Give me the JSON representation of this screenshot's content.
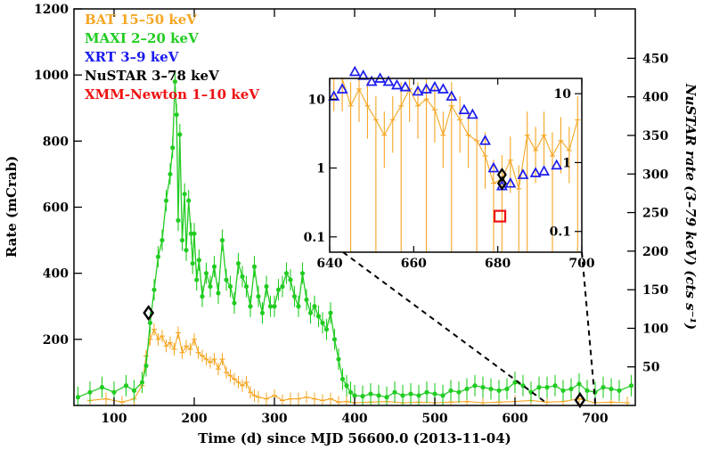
{
  "chart_data": [
    {
      "type": "scatter",
      "xlabel": "Time (d) since MJD 56600.0 (2013-11-04)",
      "ylabel": "Rate (mCrab)",
      "y2label": "NuSTAR rate (3–79 keV) (cts s⁻¹)",
      "xlim": [
        50,
        750
      ],
      "ylim": [
        0,
        1200
      ],
      "y2lim": [
        0,
        514
      ],
      "x_ticks": [
        "100",
        "200",
        "300",
        "400",
        "500",
        "600",
        "700"
      ],
      "y_ticks": [
        "200",
        "400",
        "600",
        "800",
        "1000",
        "1200"
      ],
      "y2_ticks": [
        "50",
        "100",
        "150",
        "200",
        "250",
        "300",
        "350",
        "400",
        "450"
      ],
      "legend_position": "top-left",
      "legend": [
        {
          "label": "BAT 15–50 keV",
          "color": "#f5a623"
        },
        {
          "label": "MAXI 2–20 keV",
          "color": "#22cc22"
        },
        {
          "label": "XRT 3–9 keV",
          "color": "#1a1aee"
        },
        {
          "label": "NuSTAR 3–78 keV",
          "color": "#000000"
        },
        {
          "label": "XMM-Newton 1–10 keV",
          "color": "#ee1111"
        }
      ],
      "series": [
        {
          "name": "MAXI 2–20 keV",
          "color": "#22cc22",
          "x": [
            55,
            70,
            85,
            100,
            115,
            125,
            135,
            140,
            145,
            150,
            155,
            160,
            165,
            170,
            173,
            176,
            178,
            180,
            182,
            185,
            188,
            190,
            193,
            196,
            198,
            200,
            203,
            206,
            210,
            215,
            220,
            225,
            230,
            235,
            240,
            245,
            250,
            255,
            260,
            265,
            270,
            275,
            280,
            285,
            290,
            295,
            300,
            305,
            310,
            315,
            320,
            325,
            330,
            335,
            340,
            345,
            350,
            355,
            360,
            365,
            370,
            375,
            380,
            385,
            390,
            395,
            400,
            410,
            420,
            430,
            440,
            450,
            460,
            470,
            480,
            490,
            500,
            510,
            520,
            530,
            540,
            550,
            560,
            570,
            580,
            590,
            600,
            610,
            620,
            630,
            640,
            650,
            660,
            670,
            680,
            690,
            700,
            710,
            720,
            730,
            745
          ],
          "y": [
            25,
            40,
            55,
            40,
            60,
            45,
            70,
            120,
            250,
            350,
            450,
            500,
            620,
            700,
            780,
            980,
            880,
            560,
            820,
            500,
            640,
            470,
            620,
            520,
            430,
            520,
            380,
            440,
            330,
            400,
            360,
            420,
            340,
            500,
            380,
            360,
            310,
            430,
            390,
            360,
            300,
            420,
            330,
            280,
            360,
            300,
            300,
            350,
            360,
            400,
            380,
            330,
            300,
            400,
            320,
            280,
            300,
            270,
            250,
            230,
            280,
            200,
            140,
            80,
            60,
            40,
            30,
            28,
            35,
            30,
            25,
            40,
            30,
            35,
            30,
            40,
            35,
            30,
            45,
            40,
            50,
            60,
            55,
            50,
            45,
            50,
            70,
            60,
            40,
            55,
            55,
            60,
            45,
            50,
            65,
            45,
            40,
            55,
            50,
            45,
            60
          ]
        },
        {
          "name": "BAT 15–50 keV",
          "color": "#f5a623",
          "x": [
            70,
            90,
            110,
            125,
            135,
            140,
            145,
            150,
            155,
            160,
            165,
            170,
            175,
            180,
            185,
            190,
            195,
            200,
            205,
            210,
            215,
            220,
            225,
            230,
            235,
            240,
            245,
            250,
            255,
            260,
            265,
            270,
            275,
            280,
            290,
            300,
            310,
            320,
            330,
            340,
            350,
            360,
            370,
            380,
            390,
            400,
            420,
            440,
            460,
            480,
            500,
            520,
            540,
            560,
            580,
            600,
            620,
            640,
            660,
            680,
            700,
            720,
            740
          ],
          "y": [
            15,
            20,
            10,
            20,
            60,
            150,
            200,
            230,
            200,
            210,
            180,
            190,
            170,
            220,
            160,
            180,
            170,
            200,
            160,
            150,
            140,
            130,
            140,
            110,
            140,
            100,
            90,
            80,
            70,
            60,
            70,
            40,
            30,
            25,
            20,
            30,
            15,
            20,
            20,
            25,
            20,
            15,
            20,
            10,
            12,
            8,
            10,
            12,
            8,
            10,
            8,
            10,
            12,
            8,
            10,
            12,
            15,
            10,
            12,
            20,
            8,
            10,
            8
          ]
        },
        {
          "name": "NuSTAR 3–78 keV",
          "color": "#000000",
          "x": [
            143,
            681
          ],
          "y": [
            280,
            3
          ]
        }
      ]
    },
    {
      "type": "scatter",
      "xlim": [
        640,
        700
      ],
      "ylog": true,
      "ylim": [
        0.06,
        20
      ],
      "x_ticks": [
        "640",
        "660",
        "680",
        "700"
      ],
      "y_ticks": [
        "0.1",
        "1",
        "10"
      ],
      "y2_ticks": [
        "0.1",
        "1",
        "10"
      ],
      "series": [
        {
          "name": "BAT 15–50 keV",
          "color": "#f5a623",
          "x": [
            641,
            643,
            645,
            647,
            649,
            651,
            653,
            655,
            657,
            659,
            661,
            663,
            665,
            667,
            669,
            671,
            673,
            675,
            677,
            679,
            681,
            683,
            685,
            687,
            689,
            691,
            693,
            695,
            697,
            699
          ],
          "y": [
            20,
            20,
            8,
            14,
            8,
            5,
            3,
            5,
            8,
            14,
            8,
            10,
            7,
            3,
            8,
            5,
            3,
            2.5,
            1.5,
            0.6,
            0.7,
            1.3,
            0.5,
            3,
            1.8,
            3,
            1.5,
            2.5,
            1.8,
            5
          ]
        },
        {
          "name": "XRT 3–9 keV",
          "color": "#1a1aee",
          "x": [
            641,
            643,
            646,
            648,
            650,
            652,
            654,
            656,
            658,
            661,
            663,
            665,
            667,
            669,
            672,
            674,
            677,
            679,
            681,
            683,
            686,
            689,
            691,
            694
          ],
          "y": [
            11,
            14,
            25,
            22,
            18,
            20,
            18,
            16,
            15,
            13,
            14,
            15,
            14,
            11,
            7,
            6,
            2.5,
            1,
            0.55,
            0.6,
            0.8,
            0.85,
            0.9,
            1.1
          ]
        },
        {
          "name": "NuSTAR 3–78 keV",
          "color": "#000000",
          "x": [
            681,
            681
          ],
          "y": [
            0.8,
            0.6
          ]
        },
        {
          "name": "XMM-Newton 1–10 keV",
          "color": "#ee1111",
          "x": [
            680.5
          ],
          "y": [
            0.2
          ]
        }
      ]
    }
  ]
}
